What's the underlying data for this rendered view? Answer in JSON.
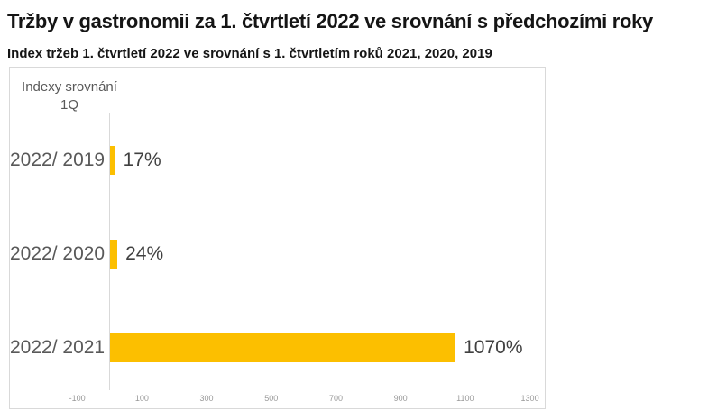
{
  "page": {
    "title": "Tržby v gastronomii za 1. čtvrtletí 2022 ve srovnání s předchozími roky",
    "subtitle": "Index tržeb 1. čtvrtletí 2022 ve srovnání s 1. čtvrtletím roků 2021, 2020, 2019"
  },
  "chart_data": {
    "type": "bar",
    "orientation": "horizontal",
    "title": "Tržby v gastronomii za 1. čtvrtletí 2022 ve srovnání s předchozími roky",
    "subtitle": "Index tržeb 1. čtvrtletí 2022 ve srovnání s 1. čtvrtletím roků 2021, 2020, 2019",
    "axis_label": "Indexy srovnání 1Q",
    "categories": [
      "2022/ 2019",
      "2022/ 2020",
      "2022/ 2021"
    ],
    "values": [
      17,
      24,
      1070
    ],
    "data_labels": [
      "17%",
      "24%",
      "1070%"
    ],
    "unit": "%",
    "x_ticks": [
      -100,
      100,
      300,
      500,
      700,
      900,
      1100,
      1300
    ],
    "xlim": [
      -100,
      1350
    ],
    "grid": false,
    "legend": false,
    "bar_color": "#FCBF00"
  },
  "colors": {
    "background": "#FFFFFF",
    "bar": "#FCBF00",
    "title_text": "#151515",
    "category_text": "#595959",
    "value_text": "#404040",
    "tick_text": "#999999",
    "border": "#D9D9D9"
  }
}
